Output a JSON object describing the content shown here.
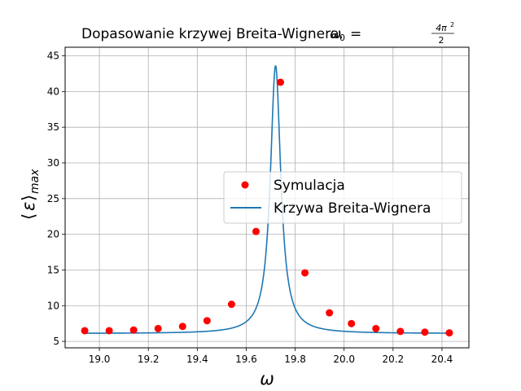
{
  "chart_data": {
    "type": "scatter",
    "title": {
      "text": "Dopasowanie krzywej Breita-Wignera.",
      "omega": "ω",
      "subscript": "0",
      "equals": "=",
      "numerator": "4π",
      "numerator_power": "2",
      "denominator": "2"
    },
    "xlabel": "ω",
    "ylabel": {
      "langle": "⟨",
      "epsilon": "ε",
      "rangle": "⟩",
      "subscript": "max"
    },
    "xlim": [
      18.86,
      20.51
    ],
    "ylim": [
      4.1,
      46.2
    ],
    "xticks": [
      19.0,
      19.2,
      19.4,
      19.6,
      19.8,
      20.0,
      20.2,
      20.4
    ],
    "xtick_labels": [
      "19.0",
      "19.2",
      "19.4",
      "19.6",
      "19.8",
      "20.0",
      "20.2",
      "20.4"
    ],
    "yticks": [
      5,
      10,
      15,
      20,
      25,
      30,
      35,
      40,
      45
    ],
    "ytick_labels": [
      "5",
      "10",
      "15",
      "20",
      "25",
      "30",
      "35",
      "40",
      "45"
    ],
    "grid": true,
    "legend_position": "center-right",
    "series": [
      {
        "name": "Symulacja",
        "kind": "scatter",
        "color": "#ff0000",
        "x": [
          18.94,
          19.04,
          19.14,
          19.24,
          19.34,
          19.44,
          19.54,
          19.64,
          19.74,
          19.84,
          19.94,
          20.03,
          20.13,
          20.23,
          20.33,
          20.43
        ],
        "y": [
          6.5,
          6.5,
          6.6,
          6.8,
          7.1,
          7.9,
          10.2,
          20.4,
          41.3,
          14.6,
          9.0,
          7.5,
          6.8,
          6.4,
          6.3,
          6.2
        ]
      },
      {
        "name": "Krzywa Breita-Wignera",
        "kind": "line",
        "color": "#1f77b4",
        "model": {
          "formula": "y0 + A / ((x - x0)^2 + g^2)",
          "y0": 6.1,
          "A": 0.025,
          "x0": 19.72,
          "g": 0.0258
        },
        "x_range": [
          18.94,
          20.43
        ]
      }
    ]
  }
}
